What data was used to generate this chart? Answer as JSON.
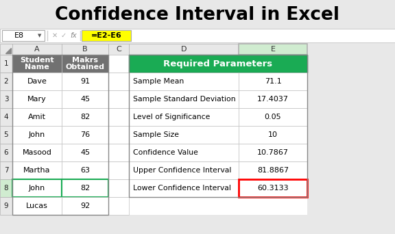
{
  "title": "Confidence Interval in Excel",
  "formula_bar_cell": "E8",
  "formula_bar_formula": "=E2-E6",
  "left_rows": [
    [
      "Student\nName",
      "Makrs\nObtained"
    ],
    [
      "Dave",
      "91"
    ],
    [
      "Mary",
      "45"
    ],
    [
      "Amit",
      "82"
    ],
    [
      "John",
      "76"
    ],
    [
      "Masood",
      "45"
    ],
    [
      "Martha",
      "63"
    ],
    [
      "John",
      "82"
    ],
    [
      "Lucas",
      "92"
    ]
  ],
  "right_header": "Required Parameters",
  "right_rows": [
    [
      "Sample Mean",
      "71.1"
    ],
    [
      "Sample Standard Deviation",
      "17.4037"
    ],
    [
      "Level of Significance",
      "0.05"
    ],
    [
      "Sample Size",
      "10"
    ],
    [
      "Confidence Value",
      "10.7867"
    ],
    [
      "Upper Confidence Interval",
      "81.8867"
    ],
    [
      "Lower Confidence Interval",
      "60.3133"
    ]
  ],
  "header_bg": "#717171",
  "header_fg": "#ffffff",
  "green_header_bg": "#1aab54",
  "green_header_fg": "#ffffff",
  "row8_left_border": "#1aab54",
  "cell_bg": "#ffffff",
  "cell_border": "#c0c0c0",
  "row8_highlight_border": "#ff0000",
  "formula_yellow": "#ffff00",
  "title_color": "#000000",
  "bg_color": "#e8e8e8",
  "col_header_bg": "#e8e8e8",
  "rn_header_bg": "#e8e8e8",
  "e_col_header_bg": "#d0ecd0"
}
